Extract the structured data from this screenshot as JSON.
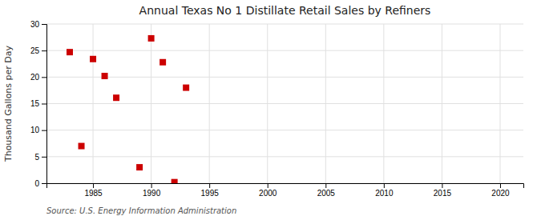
{
  "chart_data": {
    "type": "scatter",
    "title": "Annual Texas No 1 Distillate Retail Sales by Refiners",
    "ylabel": "Thousand Gallons per Day",
    "source": "Source: U.S. Energy Information Administration",
    "x": [
      1983,
      1984,
      1985,
      1986,
      1987,
      1989,
      1990,
      1991,
      1992,
      1993
    ],
    "values": [
      24.7,
      7.0,
      23.4,
      20.2,
      16.1,
      3.0,
      27.3,
      22.8,
      0.2,
      18.0
    ],
    "color": "#cc0000",
    "marker": "square",
    "xlim": [
      1981,
      2022
    ],
    "ylim": [
      0,
      30
    ],
    "xticks": [
      1985,
      1990,
      1995,
      2000,
      2005,
      2010,
      2015,
      2020
    ],
    "yticks": [
      0,
      5,
      10,
      15,
      20,
      25,
      30
    ],
    "grid": true
  }
}
